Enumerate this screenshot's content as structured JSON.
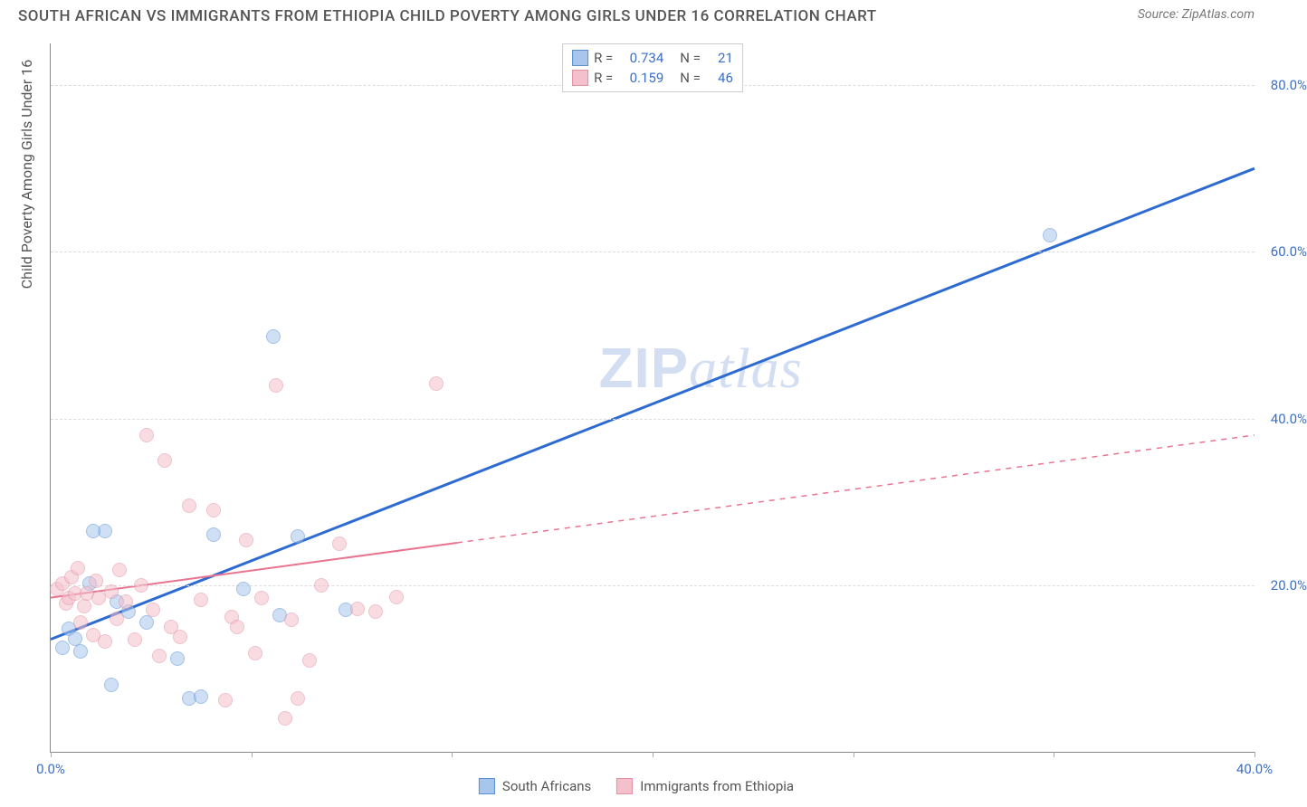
{
  "title": "SOUTH AFRICAN VS IMMIGRANTS FROM ETHIOPIA CHILD POVERTY AMONG GIRLS UNDER 16 CORRELATION CHART",
  "source": "Source: ZipAtlas.com",
  "y_axis_title": "Child Poverty Among Girls Under 16",
  "watermark_bold": "ZIP",
  "watermark_italic": "atlas",
  "chart": {
    "type": "scatter",
    "background_color": "#ffffff",
    "grid_color": "#dddddd",
    "axis_color": "#888888",
    "xlim": [
      0,
      40
    ],
    "ylim": [
      0,
      85
    ],
    "x_ticks": [
      0,
      6.67,
      13.33,
      20,
      26.67,
      33.33,
      40
    ],
    "x_tick_labels": [
      "0.0%",
      "",
      "",
      "",
      "",
      "",
      "40.0%"
    ],
    "y_grid": [
      20,
      40,
      60,
      80
    ],
    "y_tick_labels": [
      "20.0%",
      "40.0%",
      "60.0%",
      "80.0%"
    ],
    "label_color": "#3b6fc9",
    "label_fontsize": 15,
    "title_color": "#555555",
    "title_fontsize": 17,
    "marker_radius": 8,
    "marker_opacity": 0.55,
    "series": [
      {
        "name": "South Africans",
        "color_fill": "#a8c5ec",
        "color_stroke": "#5a8fd6",
        "R": "0.734",
        "N": "21",
        "trend": {
          "x1": 0,
          "y1": 13.5,
          "x2": 40,
          "y2": 70,
          "color": "#2d6bd1",
          "width": 3,
          "solid_until_x": 40
        },
        "points": [
          [
            0.4,
            12.5
          ],
          [
            0.6,
            14.8
          ],
          [
            0.8,
            13.6
          ],
          [
            1.0,
            12.0
          ],
          [
            1.3,
            20.2
          ],
          [
            1.8,
            26.5
          ],
          [
            2.0,
            8.0
          ],
          [
            2.2,
            18.0
          ],
          [
            2.6,
            16.8
          ],
          [
            3.2,
            15.5
          ],
          [
            4.2,
            11.2
          ],
          [
            4.6,
            6.4
          ],
          [
            5.0,
            6.6
          ],
          [
            5.4,
            26.0
          ],
          [
            6.4,
            19.5
          ],
          [
            7.4,
            49.8
          ],
          [
            7.6,
            16.4
          ],
          [
            8.2,
            25.8
          ],
          [
            9.8,
            17.0
          ],
          [
            33.2,
            62.0
          ],
          [
            1.4,
            26.5
          ]
        ]
      },
      {
        "name": "Immigrants from Ethiopia",
        "color_fill": "#f4c0cc",
        "color_stroke": "#e290a4",
        "R": "0.159",
        "N": "46",
        "trend": {
          "x1": 0,
          "y1": 18.5,
          "x2": 40,
          "y2": 38,
          "color": "#e97490",
          "width": 2,
          "solid_until_x": 13.5
        },
        "points": [
          [
            0.2,
            19.5
          ],
          [
            0.4,
            20.2
          ],
          [
            0.5,
            17.8
          ],
          [
            0.6,
            18.5
          ],
          [
            0.7,
            21.0
          ],
          [
            0.8,
            19.0
          ],
          [
            0.9,
            22.0
          ],
          [
            1.0,
            15.5
          ],
          [
            1.1,
            17.5
          ],
          [
            1.2,
            19.0
          ],
          [
            1.4,
            14.0
          ],
          [
            1.5,
            20.5
          ],
          [
            1.6,
            18.5
          ],
          [
            1.8,
            13.2
          ],
          [
            2.0,
            19.2
          ],
          [
            2.2,
            16.0
          ],
          [
            2.3,
            21.8
          ],
          [
            2.5,
            18.0
          ],
          [
            2.8,
            13.5
          ],
          [
            3.0,
            20.0
          ],
          [
            3.2,
            38.0
          ],
          [
            3.4,
            17.0
          ],
          [
            3.6,
            11.5
          ],
          [
            3.8,
            35.0
          ],
          [
            4.0,
            15.0
          ],
          [
            4.3,
            13.8
          ],
          [
            4.6,
            29.5
          ],
          [
            5.0,
            18.2
          ],
          [
            5.4,
            29.0
          ],
          [
            5.8,
            6.2
          ],
          [
            6.0,
            16.2
          ],
          [
            6.2,
            15.0
          ],
          [
            6.5,
            25.4
          ],
          [
            6.8,
            11.8
          ],
          [
            7.0,
            18.5
          ],
          [
            7.5,
            44.0
          ],
          [
            8.0,
            15.8
          ],
          [
            8.2,
            6.4
          ],
          [
            8.6,
            11.0
          ],
          [
            9.0,
            20.0
          ],
          [
            9.6,
            25.0
          ],
          [
            10.2,
            17.2
          ],
          [
            10.8,
            16.8
          ],
          [
            12.8,
            44.2
          ],
          [
            11.5,
            18.6
          ],
          [
            7.8,
            4.0
          ]
        ]
      }
    ]
  },
  "legend_labels": {
    "R": "R =",
    "N": "N ="
  }
}
